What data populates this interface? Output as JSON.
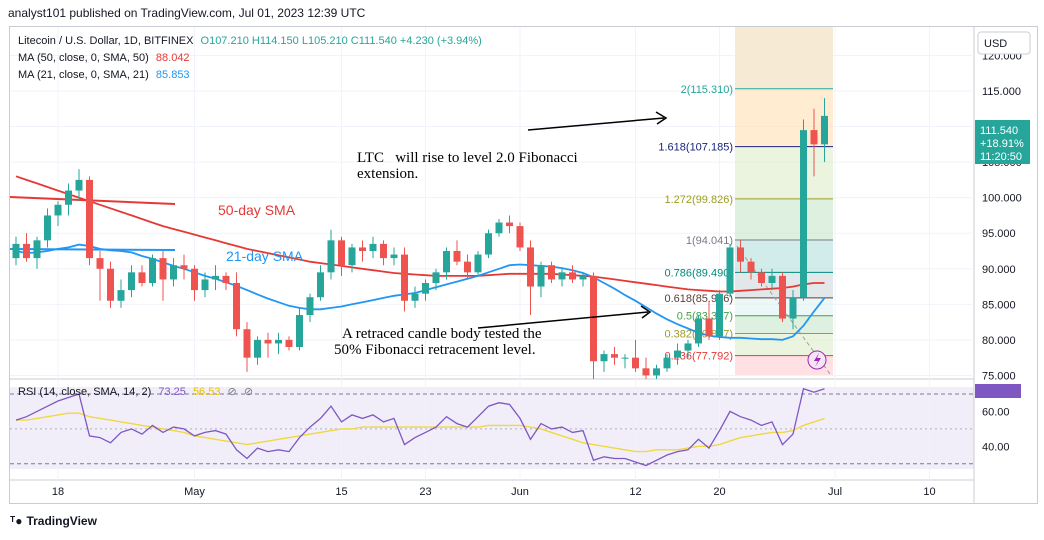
{
  "header": {
    "publish_line": "analyst101 published on TradingView.com, Jul 01, 2023 12:39 UTC"
  },
  "legend": {
    "symbol": "Litecoin / U.S. Dollar, 1D, BITFINEX",
    "ohlc": "O107.210 H114.150 L105.210 C111.540 +4.230 (+3.94%)",
    "ma50_label": "MA (50, close, 0, SMA, 50)",
    "ma50_value": "88.042",
    "ma21_label": "MA (21, close, 0, SMA, 21)",
    "ma21_value": "85.853",
    "rsi_label": "RSI (14, close, SMA, 14, 2)",
    "rsi_value": "73.25",
    "rsi_sma_value": "56.53"
  },
  "currency_button": "USD",
  "price_tag": {
    "price": "111.540",
    "change": "+18.91%",
    "countdown": "11:20:50"
  },
  "footer": {
    "brand": "TradingView"
  },
  "colors": {
    "up": "#26a69a",
    "down": "#ef5350",
    "ma50": "#e53935",
    "ma21": "#2196f3",
    "rsi": "#7e57c2",
    "rsi_sma": "#f0d840"
  },
  "chart_data": {
    "type": "candlestick",
    "y_ticks": [
      "120.000",
      "115.000",
      "110.000",
      "105.000",
      "100.000",
      "95.000",
      "90.000",
      "85.000",
      "80.000",
      "75.000"
    ],
    "ylim": [
      74.5,
      124
    ],
    "x_ticks": [
      {
        "label": "18",
        "i": 4
      },
      {
        "label": "May",
        "i": 17
      },
      {
        "label": "15",
        "i": 31
      },
      {
        "label": "23",
        "i": 39
      },
      {
        "label": "Jun",
        "i": 48
      },
      {
        "label": "12",
        "i": 59
      },
      {
        "label": "20",
        "i": 67
      },
      {
        "label": "Jul",
        "i": 78
      },
      {
        "label": "10",
        "i": 87
      }
    ],
    "candles": [
      [
        91.5,
        94.5,
        90.5,
        93.5
      ],
      [
        93.5,
        95.0,
        91.0,
        91.5
      ],
      [
        91.5,
        94.5,
        90.0,
        94.0
      ],
      [
        94.0,
        98.5,
        93.0,
        97.5
      ],
      [
        97.5,
        99.5,
        96.0,
        99.0
      ],
      [
        99.0,
        102.0,
        97.5,
        101.0
      ],
      [
        101.0,
        104.0,
        99.5,
        102.5
      ],
      [
        102.5,
        103.0,
        90.5,
        91.5
      ],
      [
        91.5,
        92.5,
        85.5,
        90.0
      ],
      [
        90.0,
        91.0,
        84.5,
        85.5
      ],
      [
        85.5,
        88.5,
        84.5,
        87.0
      ],
      [
        87.0,
        90.5,
        86.0,
        89.5
      ],
      [
        89.5,
        90.5,
        87.5,
        88.0
      ],
      [
        88.0,
        92.0,
        87.5,
        91.5
      ],
      [
        91.5,
        92.5,
        85.5,
        88.5
      ],
      [
        88.5,
        91.5,
        87.5,
        90.5
      ],
      [
        90.5,
        92.0,
        88.5,
        90.0
      ],
      [
        90.0,
        90.5,
        85.5,
        87.0
      ],
      [
        87.0,
        89.5,
        86.0,
        88.5
      ],
      [
        88.5,
        90.5,
        87.0,
        89.0
      ],
      [
        89.0,
        89.5,
        87.0,
        88.0
      ],
      [
        88.0,
        89.5,
        80.5,
        81.5
      ],
      [
        81.5,
        82.5,
        75.5,
        77.5
      ],
      [
        77.5,
        80.5,
        76.5,
        80.0
      ],
      [
        80.0,
        81.0,
        77.5,
        79.5
      ],
      [
        79.5,
        81.0,
        78.0,
        80.0
      ],
      [
        80.0,
        80.5,
        78.5,
        79.0
      ],
      [
        79.0,
        84.5,
        78.5,
        83.5
      ],
      [
        83.5,
        86.5,
        82.5,
        86.0
      ],
      [
        86.0,
        90.5,
        85.5,
        89.5
      ],
      [
        89.5,
        95.5,
        88.5,
        94.0
      ],
      [
        94.0,
        94.5,
        89.0,
        90.5
      ],
      [
        90.5,
        93.5,
        89.5,
        93.0
      ],
      [
        93.0,
        94.0,
        91.0,
        92.5
      ],
      [
        92.5,
        94.5,
        91.5,
        93.5
      ],
      [
        93.5,
        94.0,
        90.5,
        91.5
      ],
      [
        91.5,
        93.0,
        90.5,
        92.0
      ],
      [
        92.0,
        93.0,
        84.0,
        85.5
      ],
      [
        85.5,
        87.5,
        84.5,
        86.5
      ],
      [
        86.5,
        88.5,
        85.5,
        88.0
      ],
      [
        88.0,
        90.0,
        87.0,
        89.5
      ],
      [
        89.5,
        93.0,
        88.5,
        92.5
      ],
      [
        92.5,
        94.0,
        90.5,
        91.0
      ],
      [
        91.0,
        92.0,
        88.5,
        89.5
      ],
      [
        89.5,
        92.5,
        89.0,
        92.0
      ],
      [
        92.0,
        95.5,
        91.5,
        95.0
      ],
      [
        95.0,
        97.0,
        94.5,
        96.5
      ],
      [
        96.5,
        97.5,
        95.0,
        96.0
      ],
      [
        96.0,
        96.5,
        92.5,
        93.0
      ],
      [
        93.0,
        94.0,
        83.5,
        87.5
      ],
      [
        87.5,
        91.0,
        86.0,
        90.5
      ],
      [
        90.5,
        91.0,
        88.0,
        88.5
      ],
      [
        88.5,
        90.0,
        87.5,
        89.5
      ],
      [
        89.5,
        90.5,
        88.0,
        88.5
      ],
      [
        88.5,
        89.5,
        87.5,
        89.0
      ],
      [
        89.0,
        89.5,
        74.5,
        77.0
      ],
      [
        77.0,
        78.5,
        75.5,
        78.0
      ],
      [
        78.0,
        79.0,
        76.5,
        77.5
      ],
      [
        77.5,
        78.0,
        76.0,
        77.5
      ],
      [
        77.5,
        80.0,
        75.5,
        76.0
      ],
      [
        76.0,
        77.5,
        74.5,
        75.0
      ],
      [
        75.0,
        76.5,
        74.5,
        76.0
      ],
      [
        76.0,
        78.0,
        75.5,
        77.5
      ],
      [
        77.5,
        79.5,
        76.5,
        78.5
      ],
      [
        78.5,
        80.0,
        77.5,
        79.5
      ],
      [
        79.5,
        83.5,
        79.0,
        83.0
      ],
      [
        83.0,
        85.5,
        80.0,
        80.5
      ],
      [
        80.5,
        87.0,
        80.0,
        86.5
      ],
      [
        86.5,
        93.5,
        86.0,
        93.0
      ],
      [
        93.0,
        94.0,
        89.5,
        91.0
      ],
      [
        91.0,
        91.5,
        88.5,
        89.5
      ],
      [
        89.5,
        90.0,
        87.5,
        88.0
      ],
      [
        88.0,
        90.0,
        87.0,
        89.0
      ],
      [
        89.0,
        89.5,
        82.5,
        83.0
      ],
      [
        83.0,
        87.0,
        81.5,
        86.0
      ],
      [
        86.0,
        111.0,
        85.5,
        109.5
      ],
      [
        109.5,
        112.5,
        103.0,
        107.5
      ],
      [
        107.5,
        114.0,
        105.0,
        111.5
      ]
    ],
    "ma50": [
      103.0,
      102.5,
      102.0,
      101.5,
      101.0,
      100.5,
      100.0,
      99.5,
      99.0,
      98.5,
      98.0,
      97.5,
      97.0,
      96.5,
      96.0,
      95.6,
      95.2,
      94.8,
      94.4,
      94.0,
      93.6,
      93.2,
      92.8,
      92.5,
      92.2,
      91.9,
      91.6,
      91.3,
      91.0,
      90.8,
      90.6,
      90.4,
      90.2,
      90.0,
      89.8,
      89.6,
      89.4,
      89.3,
      89.2,
      89.1,
      89.0,
      89.0,
      89.0,
      89.0,
      89.0,
      89.1,
      89.2,
      89.3,
      89.3,
      89.3,
      89.3,
      89.3,
      89.2,
      89.1,
      89.0,
      88.9,
      88.7,
      88.5,
      88.3,
      88.1,
      87.9,
      87.7,
      87.5,
      87.3,
      87.1,
      87.0,
      86.9,
      86.8,
      86.8,
      86.9,
      87.0,
      87.1,
      87.2,
      87.3,
      87.5,
      87.8,
      88.0,
      88.0
    ],
    "ma21": [
      92.5,
      92.2,
      92.3,
      92.5,
      92.8,
      93.0,
      93.4,
      93.2,
      92.8,
      92.6,
      92.5,
      92.3,
      91.8,
      91.4,
      90.9,
      90.4,
      90.0,
      89.5,
      89.0,
      88.6,
      88.1,
      87.6,
      87.0,
      86.4,
      85.8,
      85.3,
      84.8,
      84.5,
      84.3,
      84.3,
      84.5,
      84.7,
      85.0,
      85.3,
      85.6,
      85.9,
      86.2,
      86.4,
      86.6,
      87.0,
      87.4,
      87.8,
      88.2,
      88.6,
      89.0,
      89.5,
      90.0,
      90.5,
      90.6,
      90.5,
      90.4,
      90.3,
      90.1,
      89.8,
      89.4,
      88.8,
      88.0,
      87.2,
      86.3,
      85.5,
      84.6,
      83.7,
      82.9,
      82.2,
      81.6,
      81.0,
      80.6,
      80.4,
      80.3,
      80.3,
      80.2,
      80.1,
      80.1,
      80.0,
      80.5,
      82.0,
      84.0,
      85.9
    ],
    "fib_levels": [
      {
        "label": "2(115.310)",
        "price": 115.31
      },
      {
        "label": "1.618(107.185)",
        "price": 107.185
      },
      {
        "label": "1.272(99.826)",
        "price": 99.826
      },
      {
        "label": "1(94.041)",
        "price": 94.041
      },
      {
        "label": "0.786(89.490)",
        "price": 89.49
      },
      {
        "label": "0.618(85.916)",
        "price": 85.916
      },
      {
        "label": "0.5(83.397)",
        "price": 83.397
      },
      {
        "label": "0.382(80.897)",
        "price": 80.897
      },
      {
        "label": "0.236(77.792)",
        "price": 77.792
      }
    ],
    "annotations": {
      "ma50": "50-day SMA",
      "ma21": "21-day SMA",
      "target_line1": "LTC   will rise to level 2.0 Fibonacci",
      "target_line2": "extension.",
      "retrace_line1": "A retraced candle body tested the",
      "retrace_line2": "50% Fibonacci retracement level."
    },
    "rsi": {
      "y_ticks": [
        "60.00",
        "40.00"
      ],
      "ylim": [
        27,
        74
      ],
      "upper": 70,
      "lower": 30,
      "values": [
        55,
        57,
        60,
        63,
        66,
        68,
        70,
        46,
        45,
        42,
        48,
        50,
        47,
        52,
        48,
        51,
        50,
        46,
        48,
        49,
        47,
        38,
        33,
        39,
        37,
        38,
        37,
        45,
        51,
        56,
        63,
        54,
        58,
        56,
        58,
        54,
        56,
        41,
        45,
        48,
        51,
        57,
        53,
        51,
        57,
        63,
        65,
        64,
        56,
        44,
        53,
        50,
        51,
        48,
        49,
        32,
        34,
        33,
        33,
        31,
        29,
        32,
        35,
        37,
        38,
        44,
        39,
        49,
        60,
        57,
        55,
        52,
        54,
        41,
        47,
        73,
        71,
        73
      ],
      "sma": [
        55,
        55,
        56,
        57,
        58,
        59,
        59,
        57,
        56,
        55,
        54,
        53,
        52,
        51,
        50,
        49,
        48,
        46,
        45,
        44,
        43,
        42,
        41,
        42,
        43,
        44,
        45,
        46,
        47,
        48,
        49,
        50,
        50,
        51,
        51,
        51,
        51,
        51,
        51,
        51,
        51,
        51,
        51,
        51,
        51,
        52,
        52,
        52,
        52,
        51,
        50,
        48,
        46,
        44,
        42,
        41,
        40,
        39,
        38,
        37,
        37,
        38,
        38,
        38,
        39,
        40,
        40,
        41,
        43,
        45,
        46,
        47,
        48,
        48,
        49,
        52,
        54,
        56
      ]
    }
  }
}
